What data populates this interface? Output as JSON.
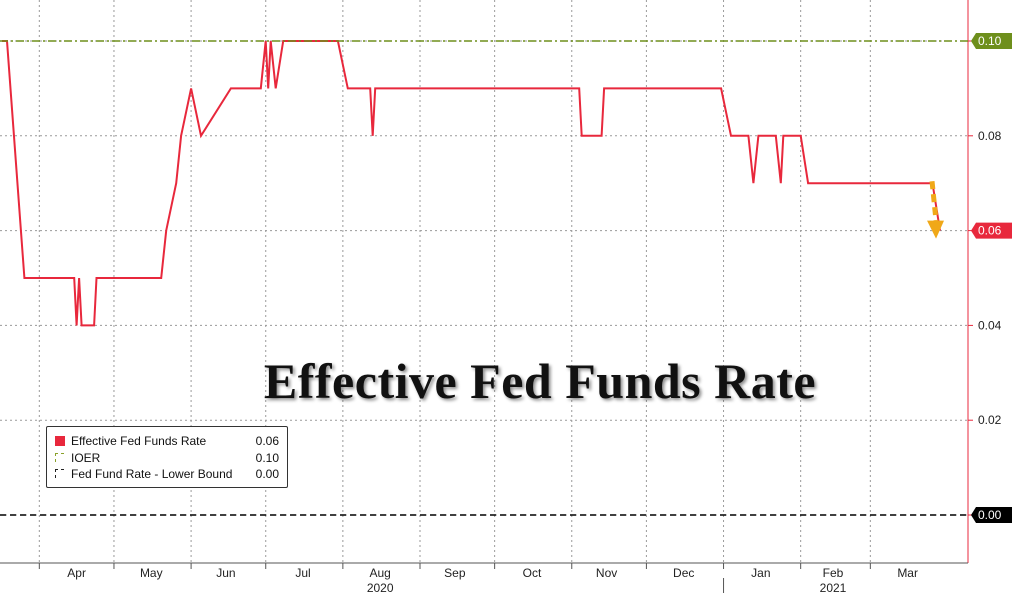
{
  "chart_data": {
    "type": "line",
    "title": "Effective Fed Funds Rate",
    "x_month_labels": [
      "Apr",
      "May",
      "Jun",
      "Jul",
      "Aug",
      "Sep",
      "Oct",
      "Nov",
      "Dec",
      "Jan",
      "Feb",
      "Mar"
    ],
    "x_year_labels": [
      "2020",
      "2021"
    ],
    "y_ticks": [
      "0.00",
      "0.02",
      "0.04",
      "0.06",
      "0.08",
      "0.10"
    ],
    "ylim": [
      -0.01,
      0.11
    ],
    "grid": true,
    "legend_position": "bottom-left",
    "series": [
      {
        "name": "Effective Fed Funds Rate",
        "last_value": "0.06",
        "color": "#e8283c",
        "style": "solid",
        "points": [
          [
            "2020-03-17",
            0.1
          ],
          [
            "2020-03-19",
            0.1
          ],
          [
            "2020-03-26",
            0.05
          ],
          [
            "2020-04-15",
            0.05
          ],
          [
            "2020-04-16",
            0.04
          ],
          [
            "2020-04-17",
            0.05
          ],
          [
            "2020-04-18",
            0.04
          ],
          [
            "2020-04-23",
            0.04
          ],
          [
            "2020-04-24",
            0.05
          ],
          [
            "2020-05-20",
            0.05
          ],
          [
            "2020-05-22",
            0.06
          ],
          [
            "2020-05-26",
            0.07
          ],
          [
            "2020-05-28",
            0.08
          ],
          [
            "2020-06-01",
            0.09
          ],
          [
            "2020-06-05",
            0.08
          ],
          [
            "2020-06-17",
            0.09
          ],
          [
            "2020-06-29",
            0.09
          ],
          [
            "2020-07-01",
            0.1
          ],
          [
            "2020-07-02",
            0.09
          ],
          [
            "2020-07-03",
            0.1
          ],
          [
            "2020-07-05",
            0.09
          ],
          [
            "2020-07-08",
            0.1
          ],
          [
            "2020-07-30",
            0.1
          ],
          [
            "2020-08-03",
            0.09
          ],
          [
            "2020-08-12",
            0.09
          ],
          [
            "2020-08-13",
            0.08
          ],
          [
            "2020-08-14",
            0.09
          ],
          [
            "2020-11-04",
            0.09
          ],
          [
            "2020-11-05",
            0.08
          ],
          [
            "2020-11-13",
            0.08
          ],
          [
            "2020-11-14",
            0.09
          ],
          [
            "2020-12-31",
            0.09
          ],
          [
            "2021-01-04",
            0.08
          ],
          [
            "2021-01-11",
            0.08
          ],
          [
            "2021-01-13",
            0.07
          ],
          [
            "2021-01-15",
            0.08
          ],
          [
            "2021-01-22",
            0.08
          ],
          [
            "2021-01-24",
            0.07
          ],
          [
            "2021-01-25",
            0.08
          ],
          [
            "2021-02-01",
            0.08
          ],
          [
            "2021-02-04",
            0.07
          ],
          [
            "2021-03-26",
            0.07
          ],
          [
            "2021-03-29",
            0.06
          ]
        ]
      },
      {
        "name": "IOER",
        "last_value": "0.10",
        "color": "#6e8f1c",
        "style": "dash-dot",
        "points": [
          [
            "2020-03-17",
            0.1
          ],
          [
            "2021-03-31",
            0.1
          ]
        ]
      },
      {
        "name": "Fed Fund Rate - Lower Bound",
        "last_value": "0.00",
        "color": "#000000",
        "style": "dashed",
        "points": [
          [
            "2020-03-17",
            0.0
          ],
          [
            "2021-03-31",
            0.0
          ]
        ]
      }
    ],
    "value_tags": [
      {
        "value": 0.1,
        "text": "0.10",
        "color": "#6e8f1c"
      },
      {
        "value": 0.06,
        "text": "0.06",
        "color": "#e8283c"
      },
      {
        "value": 0.0,
        "text": "0.00",
        "color": "#000000"
      }
    ],
    "annotation_arrow": {
      "color": "#f0a818",
      "from_value": 0.07,
      "to_value": 0.06,
      "date": "2021-03-27"
    }
  }
}
